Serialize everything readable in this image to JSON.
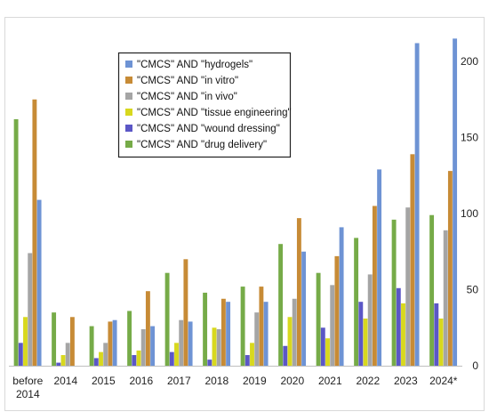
{
  "chart_data": {
    "type": "bar",
    "categories": [
      "before 2014",
      "2014",
      "2015",
      "2016",
      "2017",
      "2018",
      "2019",
      "2020",
      "2021",
      "2022",
      "2023",
      "2024*"
    ],
    "category_lines": [
      [
        "before",
        "2014"
      ],
      [
        "2014"
      ],
      [
        "2015"
      ],
      [
        "2016"
      ],
      [
        "2017"
      ],
      [
        "2018"
      ],
      [
        "2019"
      ],
      [
        "2020"
      ],
      [
        "2021"
      ],
      [
        "2022"
      ],
      [
        "2023"
      ],
      [
        "2024*"
      ]
    ],
    "bar_order": [
      "\"CMCS\" AND \"drug delivery\"",
      "\"CMCS\" AND \"wound dressing\"",
      "\"CMCS\" AND \"tissue engineering\"",
      "\"CMCS\" AND \"in vivo\"",
      "\"CMCS\" AND \"in vitro\"",
      "\"CMCS\" AND \"hydrogels\""
    ],
    "series": [
      {
        "name": "\"CMCS\" AND \"hydrogels\"",
        "color": "#6e93d4",
        "values": [
          109,
          0,
          30,
          26,
          29,
          42,
          42,
          75,
          91,
          129,
          212,
          215
        ]
      },
      {
        "name": "\"CMCS\" AND \"in vitro\"",
        "color": "#c78b36",
        "values": [
          175,
          32,
          29,
          49,
          70,
          44,
          52,
          97,
          72,
          105,
          139,
          128
        ]
      },
      {
        "name": "\"CMCS\" AND \"in vivo\"",
        "color": "#a5a5a5",
        "values": [
          74,
          15,
          15,
          24,
          30,
          24,
          35,
          44,
          53,
          60,
          104,
          89
        ]
      },
      {
        "name": "\"CMCS\" AND \"tissue engineering\"",
        "color": "#d8d81e",
        "values": [
          32,
          7,
          9,
          10,
          15,
          25,
          15,
          32,
          18,
          31,
          41,
          31
        ]
      },
      {
        "name": "\"CMCS\" AND \"wound dressing\"",
        "color": "#5b57c6",
        "values": [
          15,
          2,
          5,
          7,
          9,
          4,
          7,
          13,
          25,
          42,
          51,
          41
        ]
      },
      {
        "name": "\"CMCS\" AND \"drug delivery\"",
        "color": "#76ab48",
        "values": [
          162,
          35,
          26,
          36,
          61,
          48,
          52,
          80,
          61,
          84,
          96,
          99
        ]
      }
    ],
    "y_ticks": [
      0,
      50,
      100,
      150,
      200
    ],
    "ylim": [
      0,
      228
    ],
    "y_axis_side": "right",
    "grid": false,
    "legend_position": "top-center",
    "title": "",
    "xlabel": "",
    "ylabel": ""
  }
}
